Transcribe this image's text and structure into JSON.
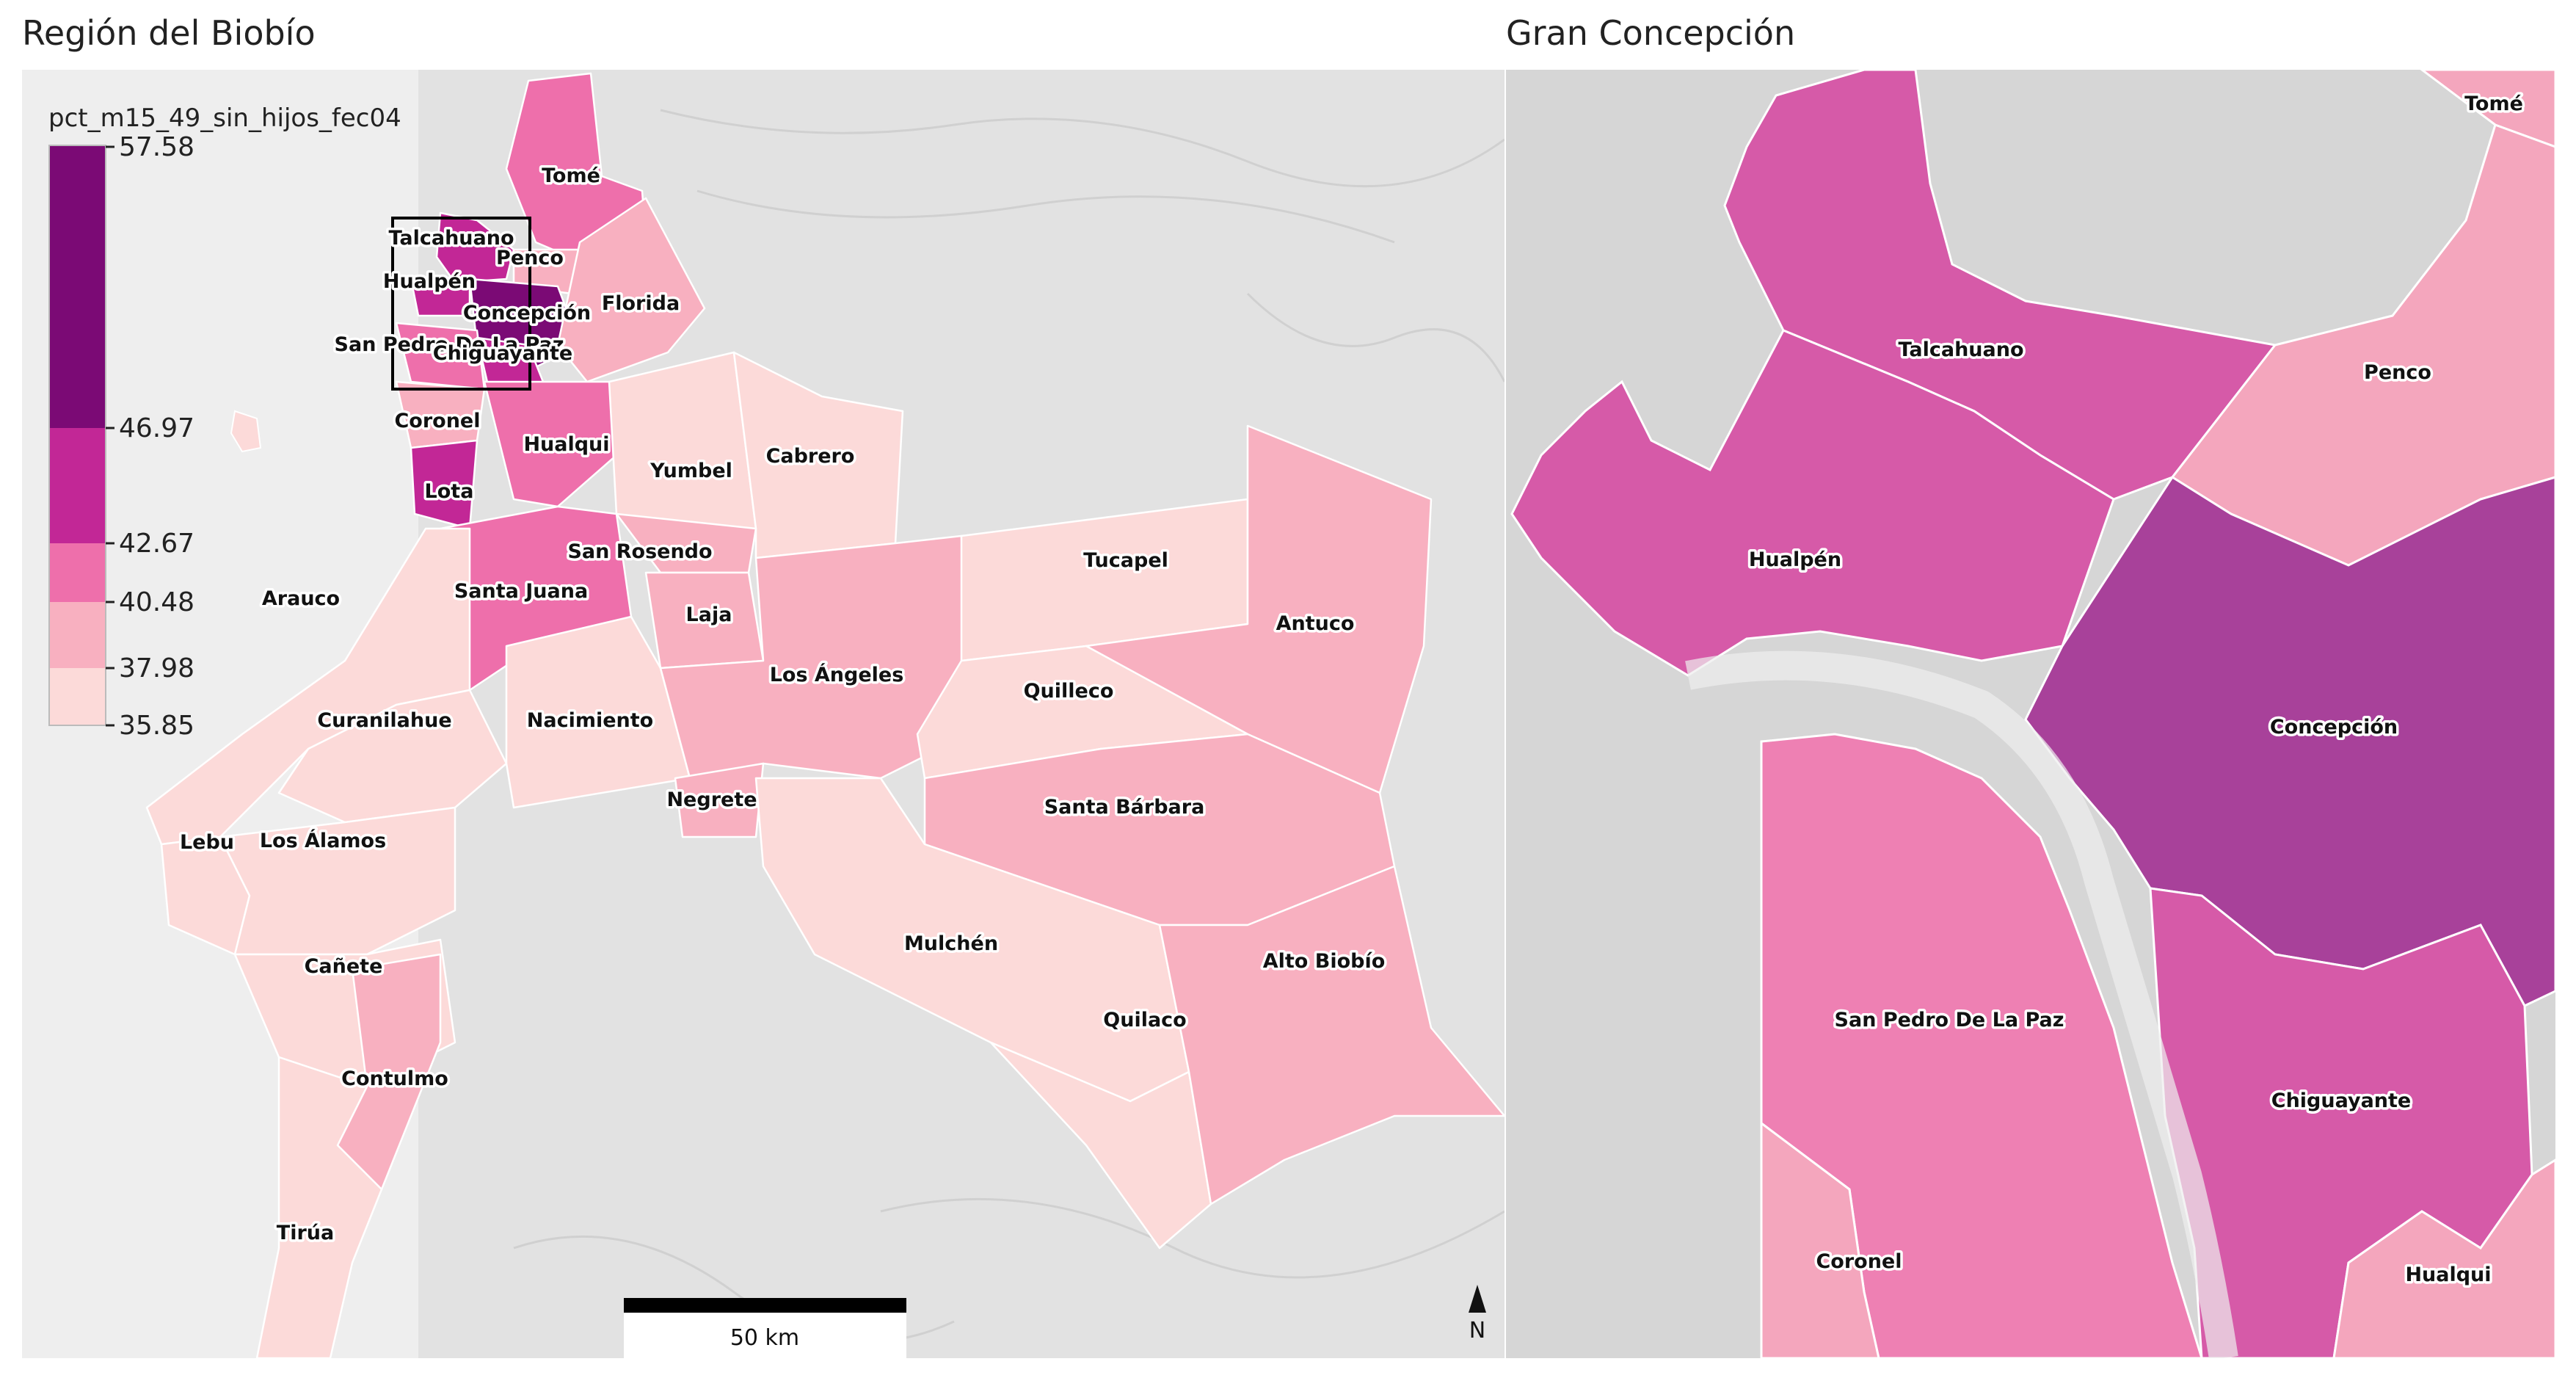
{
  "titles": {
    "left": "Región del Biobío",
    "right": "Gran Concepción"
  },
  "legend": {
    "title": "pct_m15_49_sin_hijos_fec04",
    "ticks": [
      "57.58",
      "46.97",
      "42.67",
      "40.48",
      "37.98",
      "35.85"
    ],
    "bins": [
      {
        "range": "46.97–57.58",
        "color": "#7b0a75"
      },
      {
        "range": "42.67–46.97",
        "color": "#c22796"
      },
      {
        "range": "40.48–42.67",
        "color": "#ee6fab"
      },
      {
        "range": "37.98–40.48",
        "color": "#f8b0c0"
      },
      {
        "range": "35.85–37.98",
        "color": "#fcdad9"
      }
    ]
  },
  "scale_bar": {
    "label": "50 km"
  },
  "north_arrow": {
    "label": "N"
  },
  "region_labels": {
    "tome": "Tomé",
    "talcahuano": "Talcahuano",
    "penco": "Penco",
    "hualpen": "Hualpén",
    "concepcion": "Concepción",
    "florida": "Florida",
    "san_pedro": "San Pedro De La Paz",
    "chiguayante": "Chiguayante",
    "coronel": "Coronel",
    "hualqui": "Hualqui",
    "yumbel": "Yumbel",
    "cabrero": "Cabrero",
    "lota": "Lota",
    "san_rosendo": "San Rosendo",
    "tucapel": "Tucapel",
    "arauco": "Arauco",
    "santa_juana": "Santa Juana",
    "laja": "Laja",
    "antuco": "Antuco",
    "los_angeles": "Los Ángeles",
    "quilleco": "Quilleco",
    "curanilahue": "Curanilahue",
    "nacimiento": "Nacimiento",
    "negrete": "Negrete",
    "santa_barbara": "Santa Bárbara",
    "lebu": "Lebu",
    "los_alamos": "Los Álamos",
    "mulchen": "Mulchén",
    "alto_biobio": "Alto Biobío",
    "canete": "Cañete",
    "quilaco": "Quilaco",
    "contulmo": "Contulmo",
    "tirua": "Tirúa"
  },
  "inset_labels": {
    "tome": "Tomé",
    "talcahuano": "Talcahuano",
    "penco": "Penco",
    "hualpen": "Hualpén",
    "concepcion": "Concepción",
    "san_pedro": "San Pedro De La Paz",
    "chiguayante": "Chiguayante",
    "coronel": "Coronel",
    "hualqui": "Hualqui"
  }
}
